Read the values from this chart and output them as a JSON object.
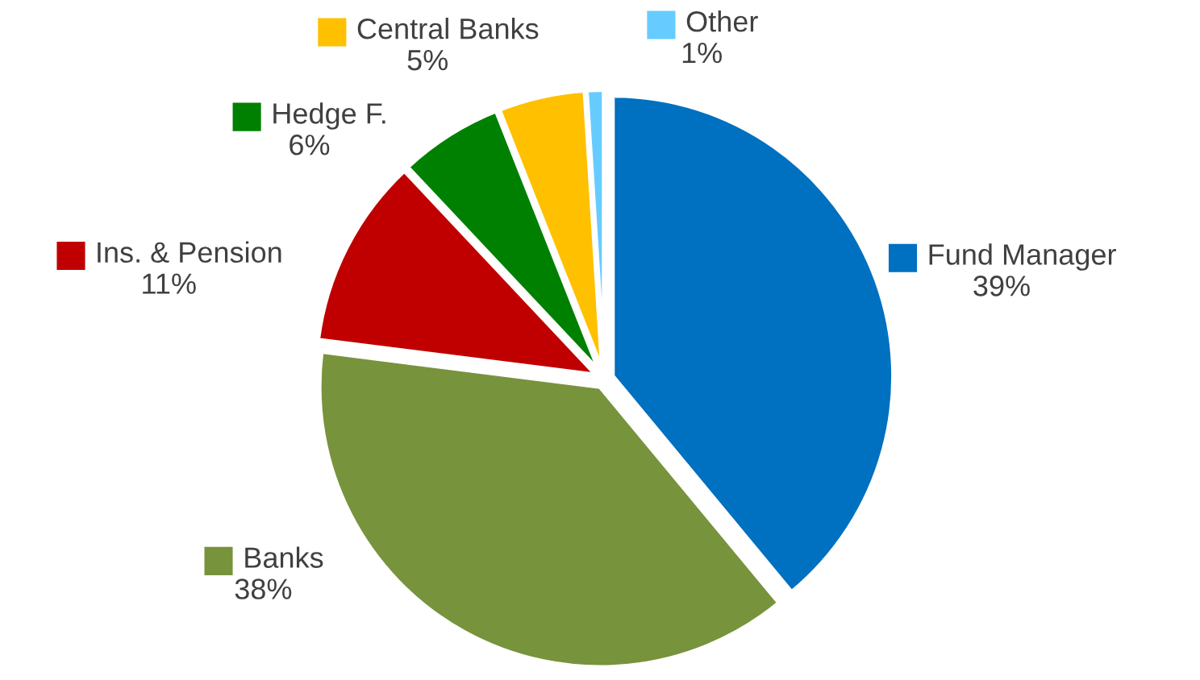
{
  "chart_data": {
    "type": "pie",
    "categories": [
      "Fund Manager",
      "Banks",
      "Ins. & Pension",
      "Hedge F.",
      "Central Banks",
      "Other"
    ],
    "values": [
      39,
      38,
      11,
      6,
      5,
      1
    ],
    "colors": [
      "#0070c0",
      "#77933c",
      "#c00000",
      "#008000",
      "#ffc000",
      "#66ccff"
    ],
    "value_labels": [
      "39%",
      "38%",
      "11%",
      "6%",
      "5%",
      "1%"
    ],
    "legend": "top left"
  }
}
